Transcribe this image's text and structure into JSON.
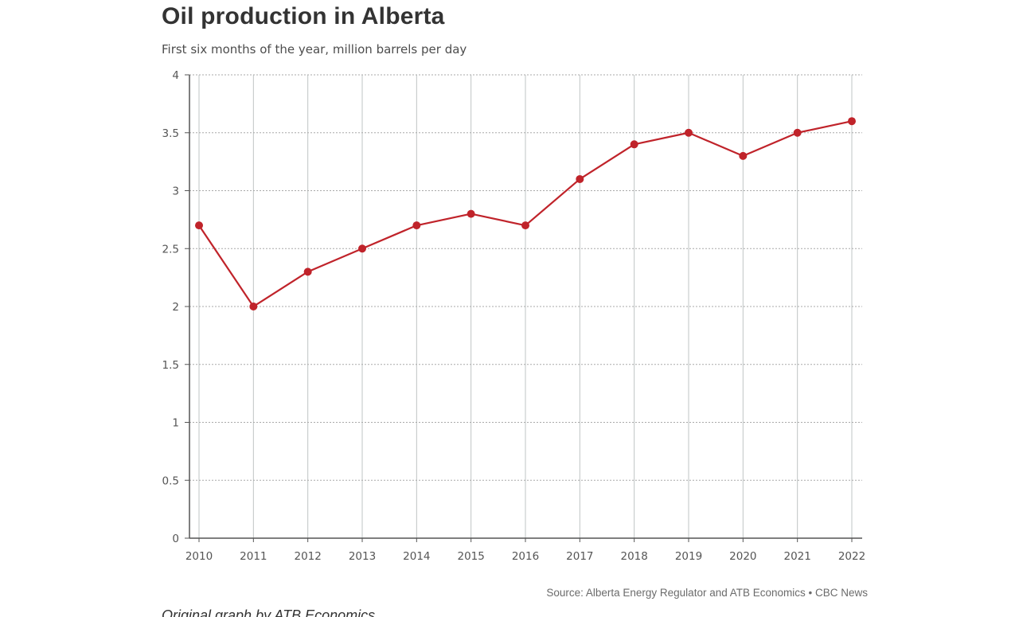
{
  "chart_data": {
    "type": "line",
    "title": "Oil production in Alberta",
    "subtitle": "First six months of the year, million barrels per day",
    "xlabel": "",
    "ylabel": "",
    "categories": [
      "2010",
      "2011",
      "2012",
      "2013",
      "2014",
      "2015",
      "2016",
      "2017",
      "2018",
      "2019",
      "2020",
      "2021",
      "2022"
    ],
    "series": [
      {
        "values": [
          2.7,
          2.0,
          2.3,
          2.5,
          2.7,
          2.8,
          2.7,
          3.1,
          3.4,
          3.5,
          3.3,
          3.5,
          3.6
        ]
      }
    ],
    "ylim": [
      0,
      4
    ],
    "yticks": [
      0,
      0.5,
      1,
      1.5,
      2,
      2.5,
      3,
      3.5,
      4
    ],
    "ytick_labels": [
      "0",
      "0.5",
      "1",
      "1.5",
      "2",
      "2.5",
      "3",
      "3.5",
      "4"
    ],
    "grid": true,
    "series_color": "#c0232a",
    "source": "Source: Alberta Energy Regulator and ATB Economics • CBC News"
  },
  "caption_cut": "Original graph by ATB Economics"
}
